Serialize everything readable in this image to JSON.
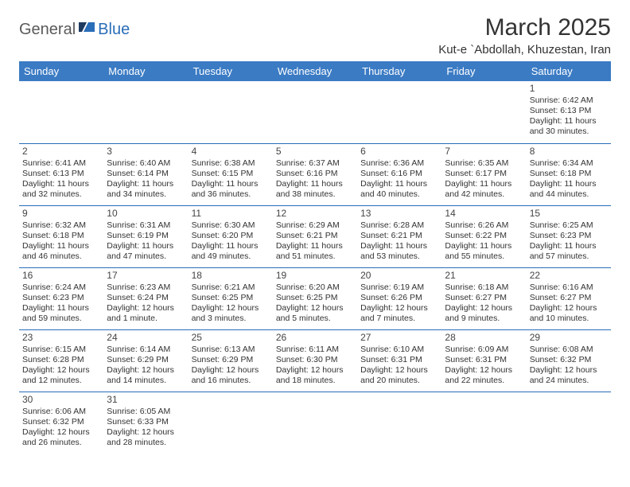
{
  "brand": {
    "part1": "General",
    "part2": "Blue"
  },
  "title": "March 2025",
  "location": "Kut-e `Abdollah, Khuzestan, Iran",
  "colors": {
    "headerBg": "#3b7bc4",
    "border": "#2a6db8",
    "text": "#333333"
  },
  "weekdays": [
    "Sunday",
    "Monday",
    "Tuesday",
    "Wednesday",
    "Thursday",
    "Friday",
    "Saturday"
  ],
  "weeks": [
    [
      null,
      null,
      null,
      null,
      null,
      null,
      {
        "n": "1",
        "sr": "Sunrise: 6:42 AM",
        "ss": "Sunset: 6:13 PM",
        "dl": "Daylight: 11 hours and 30 minutes."
      }
    ],
    [
      {
        "n": "2",
        "sr": "Sunrise: 6:41 AM",
        "ss": "Sunset: 6:13 PM",
        "dl": "Daylight: 11 hours and 32 minutes."
      },
      {
        "n": "3",
        "sr": "Sunrise: 6:40 AM",
        "ss": "Sunset: 6:14 PM",
        "dl": "Daylight: 11 hours and 34 minutes."
      },
      {
        "n": "4",
        "sr": "Sunrise: 6:38 AM",
        "ss": "Sunset: 6:15 PM",
        "dl": "Daylight: 11 hours and 36 minutes."
      },
      {
        "n": "5",
        "sr": "Sunrise: 6:37 AM",
        "ss": "Sunset: 6:16 PM",
        "dl": "Daylight: 11 hours and 38 minutes."
      },
      {
        "n": "6",
        "sr": "Sunrise: 6:36 AM",
        "ss": "Sunset: 6:16 PM",
        "dl": "Daylight: 11 hours and 40 minutes."
      },
      {
        "n": "7",
        "sr": "Sunrise: 6:35 AM",
        "ss": "Sunset: 6:17 PM",
        "dl": "Daylight: 11 hours and 42 minutes."
      },
      {
        "n": "8",
        "sr": "Sunrise: 6:34 AM",
        "ss": "Sunset: 6:18 PM",
        "dl": "Daylight: 11 hours and 44 minutes."
      }
    ],
    [
      {
        "n": "9",
        "sr": "Sunrise: 6:32 AM",
        "ss": "Sunset: 6:18 PM",
        "dl": "Daylight: 11 hours and 46 minutes."
      },
      {
        "n": "10",
        "sr": "Sunrise: 6:31 AM",
        "ss": "Sunset: 6:19 PM",
        "dl": "Daylight: 11 hours and 47 minutes."
      },
      {
        "n": "11",
        "sr": "Sunrise: 6:30 AM",
        "ss": "Sunset: 6:20 PM",
        "dl": "Daylight: 11 hours and 49 minutes."
      },
      {
        "n": "12",
        "sr": "Sunrise: 6:29 AM",
        "ss": "Sunset: 6:21 PM",
        "dl": "Daylight: 11 hours and 51 minutes."
      },
      {
        "n": "13",
        "sr": "Sunrise: 6:28 AM",
        "ss": "Sunset: 6:21 PM",
        "dl": "Daylight: 11 hours and 53 minutes."
      },
      {
        "n": "14",
        "sr": "Sunrise: 6:26 AM",
        "ss": "Sunset: 6:22 PM",
        "dl": "Daylight: 11 hours and 55 minutes."
      },
      {
        "n": "15",
        "sr": "Sunrise: 6:25 AM",
        "ss": "Sunset: 6:23 PM",
        "dl": "Daylight: 11 hours and 57 minutes."
      }
    ],
    [
      {
        "n": "16",
        "sr": "Sunrise: 6:24 AM",
        "ss": "Sunset: 6:23 PM",
        "dl": "Daylight: 11 hours and 59 minutes."
      },
      {
        "n": "17",
        "sr": "Sunrise: 6:23 AM",
        "ss": "Sunset: 6:24 PM",
        "dl": "Daylight: 12 hours and 1 minute."
      },
      {
        "n": "18",
        "sr": "Sunrise: 6:21 AM",
        "ss": "Sunset: 6:25 PM",
        "dl": "Daylight: 12 hours and 3 minutes."
      },
      {
        "n": "19",
        "sr": "Sunrise: 6:20 AM",
        "ss": "Sunset: 6:25 PM",
        "dl": "Daylight: 12 hours and 5 minutes."
      },
      {
        "n": "20",
        "sr": "Sunrise: 6:19 AM",
        "ss": "Sunset: 6:26 PM",
        "dl": "Daylight: 12 hours and 7 minutes."
      },
      {
        "n": "21",
        "sr": "Sunrise: 6:18 AM",
        "ss": "Sunset: 6:27 PM",
        "dl": "Daylight: 12 hours and 9 minutes."
      },
      {
        "n": "22",
        "sr": "Sunrise: 6:16 AM",
        "ss": "Sunset: 6:27 PM",
        "dl": "Daylight: 12 hours and 10 minutes."
      }
    ],
    [
      {
        "n": "23",
        "sr": "Sunrise: 6:15 AM",
        "ss": "Sunset: 6:28 PM",
        "dl": "Daylight: 12 hours and 12 minutes."
      },
      {
        "n": "24",
        "sr": "Sunrise: 6:14 AM",
        "ss": "Sunset: 6:29 PM",
        "dl": "Daylight: 12 hours and 14 minutes."
      },
      {
        "n": "25",
        "sr": "Sunrise: 6:13 AM",
        "ss": "Sunset: 6:29 PM",
        "dl": "Daylight: 12 hours and 16 minutes."
      },
      {
        "n": "26",
        "sr": "Sunrise: 6:11 AM",
        "ss": "Sunset: 6:30 PM",
        "dl": "Daylight: 12 hours and 18 minutes."
      },
      {
        "n": "27",
        "sr": "Sunrise: 6:10 AM",
        "ss": "Sunset: 6:31 PM",
        "dl": "Daylight: 12 hours and 20 minutes."
      },
      {
        "n": "28",
        "sr": "Sunrise: 6:09 AM",
        "ss": "Sunset: 6:31 PM",
        "dl": "Daylight: 12 hours and 22 minutes."
      },
      {
        "n": "29",
        "sr": "Sunrise: 6:08 AM",
        "ss": "Sunset: 6:32 PM",
        "dl": "Daylight: 12 hours and 24 minutes."
      }
    ],
    [
      {
        "n": "30",
        "sr": "Sunrise: 6:06 AM",
        "ss": "Sunset: 6:32 PM",
        "dl": "Daylight: 12 hours and 26 minutes."
      },
      {
        "n": "31",
        "sr": "Sunrise: 6:05 AM",
        "ss": "Sunset: 6:33 PM",
        "dl": "Daylight: 12 hours and 28 minutes."
      },
      null,
      null,
      null,
      null,
      null
    ]
  ]
}
